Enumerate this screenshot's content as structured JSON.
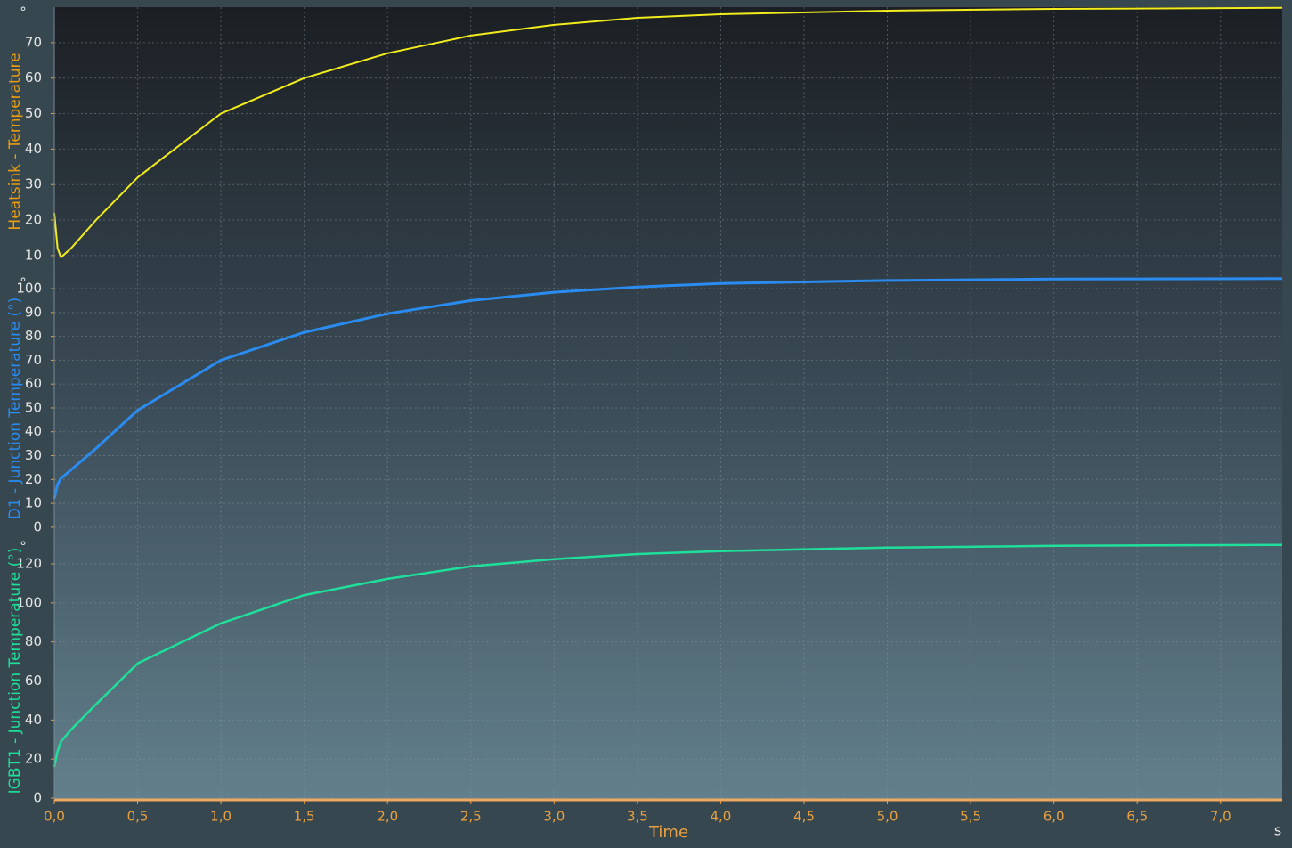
{
  "chart_data": {
    "type": "line",
    "x_label": "Time",
    "x_unit": "s",
    "x": [
      0,
      0.02,
      0.04,
      0.1,
      0.25,
      0.5,
      1.0,
      1.5,
      2.0,
      2.5,
      3.0,
      3.5,
      4.0,
      5.0,
      6.0,
      7.37
    ],
    "xlim": [
      0,
      7.37
    ],
    "xticks": [
      {
        "value": 0,
        "label": "0,0"
      },
      {
        "value": 0.5,
        "label": "0,5"
      },
      {
        "value": 1,
        "label": "1,0"
      },
      {
        "value": 1.5,
        "label": "1,5"
      },
      {
        "value": 2,
        "label": "2,0"
      },
      {
        "value": 2.5,
        "label": "2,5"
      },
      {
        "value": 3,
        "label": "3,0"
      },
      {
        "value": 3.5,
        "label": "3,5"
      },
      {
        "value": 4,
        "label": "4,0"
      },
      {
        "value": 4.5,
        "label": "4,5"
      },
      {
        "value": 5,
        "label": "5,0"
      },
      {
        "value": 5.5,
        "label": "5,5"
      },
      {
        "value": 6,
        "label": "6,0"
      },
      {
        "value": 6.5,
        "label": "6,5"
      },
      {
        "value": 7,
        "label": "7,0"
      }
    ],
    "grid": true,
    "series": [
      {
        "name": "Heatsink - Temperature",
        "unit": "°",
        "color": "#f2ec1c",
        "label_color": "#e89c12",
        "line_width": 2,
        "values": [
          22,
          12,
          9.5,
          12,
          20,
          32,
          50,
          60,
          67,
          72,
          75,
          77,
          78,
          79,
          79.5,
          79.8
        ],
        "ylim": [
          4.2,
          80
        ],
        "yticks": [
          10,
          20,
          30,
          40,
          50,
          60,
          70
        ]
      },
      {
        "name": "D1 - Junction Temperature (°)",
        "unit": "°",
        "color": "#2a8cf0",
        "label_color": "#2a8cf0",
        "line_width": 3,
        "values": [
          12,
          18,
          20.5,
          24,
          33,
          49,
          70,
          81.7,
          89.5,
          95,
          98.5,
          100.7,
          102.2,
          103.4,
          104,
          104.2
        ],
        "ylim": [
          -4.9,
          104.5
        ],
        "yticks": [
          0,
          10,
          20,
          30,
          40,
          50,
          60,
          70,
          80,
          90,
          100
        ]
      },
      {
        "name": "IGBT1 - Junction Temperature (°)",
        "unit": "°",
        "color": "#1ee09a",
        "label_color": "#1ee09a",
        "line_width": 2.5,
        "values": [
          16,
          24,
          29,
          35,
          48,
          69,
          89.5,
          104,
          112.3,
          118.7,
          122.4,
          125,
          126.5,
          128.3,
          129.2,
          129.7
        ],
        "ylim": [
          -0.9,
          131.4
        ],
        "yticks": [
          0,
          20,
          40,
          60,
          80,
          100,
          120
        ]
      }
    ]
  }
}
